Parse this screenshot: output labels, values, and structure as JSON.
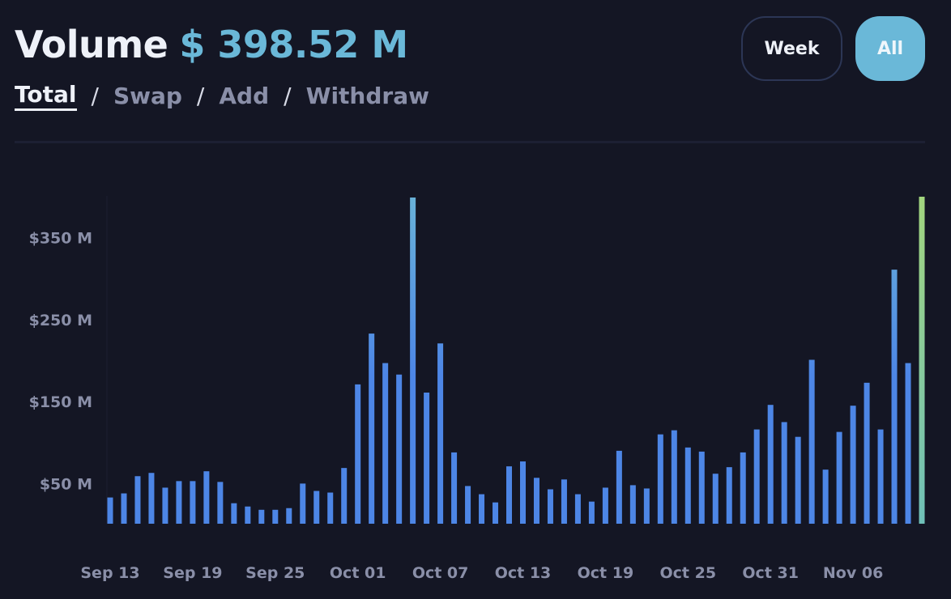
{
  "header": {
    "title": "Volume",
    "amount": "$ 398.52 M"
  },
  "tabs": [
    {
      "label": "Total",
      "active": true
    },
    {
      "label": "Swap",
      "active": false
    },
    {
      "label": "Add",
      "active": false
    },
    {
      "label": "Withdraw",
      "active": false
    }
  ],
  "separator": "/",
  "buttons": {
    "week": "Week",
    "all": "All"
  },
  "colors": {
    "accent": "#6ab8d8",
    "bar_low": "#4d86e6",
    "bar_high": "#69b2d8",
    "bar_latest": "#a2d57e",
    "axis_text": "#8a8fa8"
  },
  "chart_data": {
    "type": "bar",
    "title": "Volume",
    "xlabel": "",
    "ylabel": "",
    "ylim": [
      0,
      400
    ],
    "yticks": [
      50,
      150,
      250,
      350
    ],
    "ytick_labels": [
      "$50 M",
      "$150 M",
      "$250 M",
      "$350 M"
    ],
    "xtick_labels": [
      "Sep 13",
      "Sep 19",
      "Sep 25",
      "Oct 01",
      "Oct 07",
      "Oct 13",
      "Oct 19",
      "Oct 25",
      "Oct 31",
      "Nov 06"
    ],
    "xtick_interval": 6,
    "categories": [
      "Sep 13",
      "Sep 14",
      "Sep 15",
      "Sep 16",
      "Sep 17",
      "Sep 18",
      "Sep 19",
      "Sep 20",
      "Sep 21",
      "Sep 22",
      "Sep 23",
      "Sep 24",
      "Sep 25",
      "Sep 26",
      "Sep 27",
      "Sep 28",
      "Sep 29",
      "Sep 30",
      "Oct 01",
      "Oct 02",
      "Oct 03",
      "Oct 04",
      "Oct 05",
      "Oct 06",
      "Oct 07",
      "Oct 08",
      "Oct 09",
      "Oct 10",
      "Oct 11",
      "Oct 12",
      "Oct 13",
      "Oct 14",
      "Oct 15",
      "Oct 16",
      "Oct 17",
      "Oct 18",
      "Oct 19",
      "Oct 20",
      "Oct 21",
      "Oct 22",
      "Oct 23",
      "Oct 24",
      "Oct 25",
      "Oct 26",
      "Oct 27",
      "Oct 28",
      "Oct 29",
      "Oct 30",
      "Oct 31",
      "Nov 01",
      "Nov 02",
      "Nov 03",
      "Nov 04",
      "Nov 05",
      "Nov 06",
      "Nov 07",
      "Nov 08",
      "Nov 09",
      "Nov 10",
      "Nov 11"
    ],
    "values": [
      32,
      37,
      58,
      62,
      44,
      52,
      52,
      64,
      51,
      25,
      21,
      17,
      17,
      19,
      49,
      40,
      38,
      68,
      170,
      232,
      196,
      182,
      398,
      160,
      220,
      87,
      46,
      36,
      26,
      70,
      76,
      56,
      42,
      54,
      36,
      27,
      44,
      89,
      47,
      43,
      109,
      114,
      93,
      88,
      61,
      69,
      87,
      115,
      145,
      124,
      106,
      200,
      66,
      112,
      144,
      172,
      115,
      310,
      196,
      399
    ]
  }
}
